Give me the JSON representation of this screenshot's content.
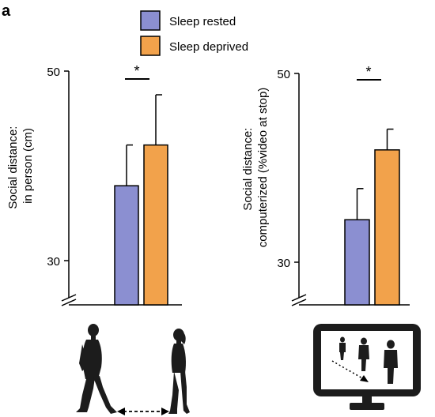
{
  "panel_label": "a",
  "colors": {
    "rested": "#8b8fd1",
    "deprived": "#f2a24b",
    "axis": "#000000",
    "figure": "#1c1c1c"
  },
  "legend": [
    {
      "label": "Sleep rested",
      "color": "#8b8fd1"
    },
    {
      "label": "Sleep deprived",
      "color": "#f2a24b"
    }
  ],
  "chart_data": [
    {
      "type": "bar",
      "ylabel_line1": "Social distance:",
      "ylabel_line2": "in person (cm)",
      "ylim": [
        30,
        50
      ],
      "yticks": [
        30,
        50
      ],
      "axis_break": true,
      "significance": "*",
      "series": [
        {
          "name": "Sleep rested",
          "value": 37.9,
          "error": 4.3
        },
        {
          "name": "Sleep deprived",
          "value": 42.2,
          "error": 5.3
        }
      ]
    },
    {
      "type": "bar",
      "ylabel_line1": "Social distance:",
      "ylabel_line2": "computerized (%video at stop)",
      "ylim": [
        30,
        50
      ],
      "yticks": [
        30,
        50
      ],
      "axis_break": true,
      "significance": "*",
      "series": [
        {
          "name": "Sleep rested",
          "value": 34.5,
          "error": 3.3
        },
        {
          "name": "Sleep deprived",
          "value": 41.9,
          "error": 2.2
        }
      ]
    }
  ],
  "illustrations": [
    {
      "icon": "people-walking-toward-each-other-icon"
    },
    {
      "icon": "computer-monitor-icon"
    }
  ]
}
